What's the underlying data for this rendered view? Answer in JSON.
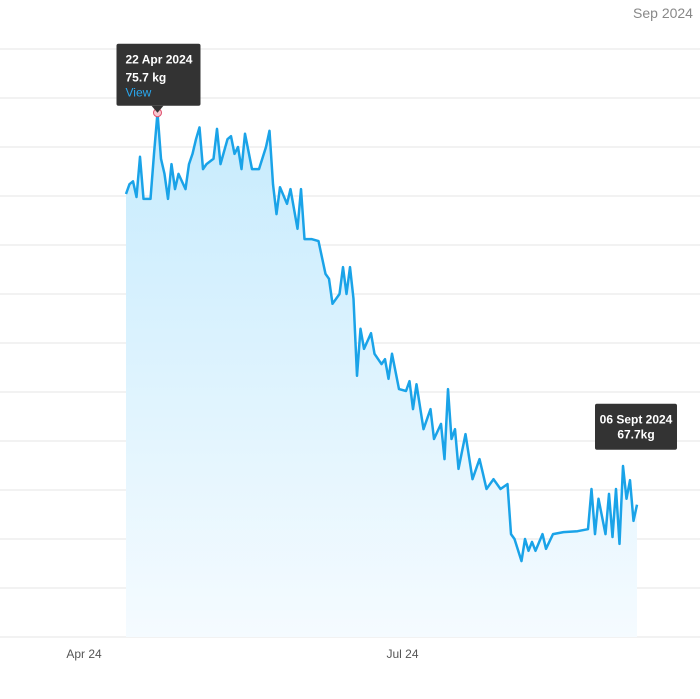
{
  "chart_data": {
    "type": "area-line",
    "period_label": "Sep 2024",
    "x": [
      "2024-04-13",
      "2024-04-14",
      "2024-04-15",
      "2024-04-16",
      "2024-04-17",
      "2024-04-18",
      "2024-04-20",
      "2024-04-21",
      "2024-04-22",
      "2024-04-23",
      "2024-04-24",
      "2024-04-25",
      "2024-04-26",
      "2024-04-27",
      "2024-04-28",
      "2024-04-30",
      "2024-05-01",
      "2024-05-02",
      "2024-05-03",
      "2024-05-04",
      "2024-05-05",
      "2024-05-06",
      "2024-05-08",
      "2024-05-09",
      "2024-05-10",
      "2024-05-12",
      "2024-05-13",
      "2024-05-14",
      "2024-05-15",
      "2024-05-16",
      "2024-05-17",
      "2024-05-19",
      "2024-05-21",
      "2024-05-23",
      "2024-05-24",
      "2024-05-25",
      "2024-05-26",
      "2024-05-27",
      "2024-05-29",
      "2024-05-30",
      "2024-06-01",
      "2024-06-02",
      "2024-06-03",
      "2024-06-05",
      "2024-06-07",
      "2024-06-09",
      "2024-06-10",
      "2024-06-11",
      "2024-06-13",
      "2024-06-14",
      "2024-06-15",
      "2024-06-16",
      "2024-06-17",
      "2024-06-18",
      "2024-06-19",
      "2024-06-20",
      "2024-06-22",
      "2024-06-23",
      "2024-06-25",
      "2024-06-26",
      "2024-06-27",
      "2024-06-28",
      "2024-06-30",
      "2024-07-02",
      "2024-07-03",
      "2024-07-04",
      "2024-07-05",
      "2024-07-07",
      "2024-07-09",
      "2024-07-10",
      "2024-07-12",
      "2024-07-13",
      "2024-07-14",
      "2024-07-15",
      "2024-07-16",
      "2024-07-17",
      "2024-07-19",
      "2024-07-21",
      "2024-07-23",
      "2024-07-24",
      "2024-07-25",
      "2024-07-27",
      "2024-07-29",
      "2024-07-31",
      "2024-08-01",
      "2024-08-02",
      "2024-08-04",
      "2024-08-05",
      "2024-08-06",
      "2024-08-07",
      "2024-08-08",
      "2024-08-10",
      "2024-08-11",
      "2024-08-13",
      "2024-08-16",
      "2024-08-20",
      "2024-08-23",
      "2024-08-24",
      "2024-08-25",
      "2024-08-26",
      "2024-08-28",
      "2024-08-29",
      "2024-08-30",
      "2024-08-31",
      "2024-09-01",
      "2024-09-02",
      "2024-09-03",
      "2024-09-04",
      "2024-09-05",
      "2024-09-06"
    ],
    "values": [
      74.04,
      74.24,
      74.3,
      73.98,
      74.8,
      73.94,
      73.94,
      74.86,
      75.7,
      74.76,
      74.45,
      73.94,
      74.65,
      74.14,
      74.45,
      74.14,
      74.65,
      74.86,
      75.16,
      75.4,
      74.55,
      74.65,
      74.76,
      75.37,
      74.65,
      75.16,
      75.22,
      74.86,
      75.0,
      74.55,
      75.27,
      74.55,
      74.55,
      75.0,
      75.33,
      74.24,
      73.63,
      74.18,
      73.84,
      74.14,
      73.33,
      74.14,
      73.12,
      73.12,
      73.08,
      72.41,
      72.31,
      71.8,
      72.0,
      72.55,
      72.0,
      72.55,
      71.9,
      70.33,
      71.29,
      70.88,
      71.2,
      70.78,
      70.57,
      70.67,
      70.27,
      70.78,
      70.06,
      70.02,
      70.22,
      69.65,
      70.16,
      69.24,
      69.65,
      69.04,
      69.35,
      68.63,
      70.06,
      69.04,
      69.24,
      68.43,
      69.14,
      68.22,
      68.63,
      68.33,
      68.02,
      68.22,
      68.02,
      68.12,
      67.1,
      67.0,
      66.55,
      67.0,
      66.76,
      66.94,
      66.76,
      67.1,
      66.8,
      67.1,
      67.14,
      67.16,
      67.2,
      68.02,
      67.1,
      67.82,
      67.1,
      67.92,
      67.04,
      68.02,
      66.9,
      68.49,
      67.82,
      68.2,
      67.37,
      67.7
    ],
    "color": "#1aa3e8",
    "xlim": [
      "2024-03-08",
      "2024-09-24"
    ],
    "xticks": [
      {
        "value": "2024-04-01",
        "label": "Apr 24"
      },
      {
        "value": "2024-07-01",
        "label": "Jul 24"
      }
    ],
    "ylim": [
      65,
      78
    ],
    "yticks": [
      65,
      66,
      67,
      68,
      69,
      70,
      71,
      72,
      73,
      74,
      75,
      76,
      77
    ],
    "grid": true,
    "annotations": [
      {
        "x": "2024-04-22",
        "y": 75.7,
        "date_label": "22 Apr 2024",
        "value_label": "75.7 kg",
        "link": "View"
      },
      {
        "x": "2024-09-06",
        "y": 67.7,
        "date_label": "06 Sept 2024",
        "value_label": "67.7kg"
      }
    ]
  }
}
